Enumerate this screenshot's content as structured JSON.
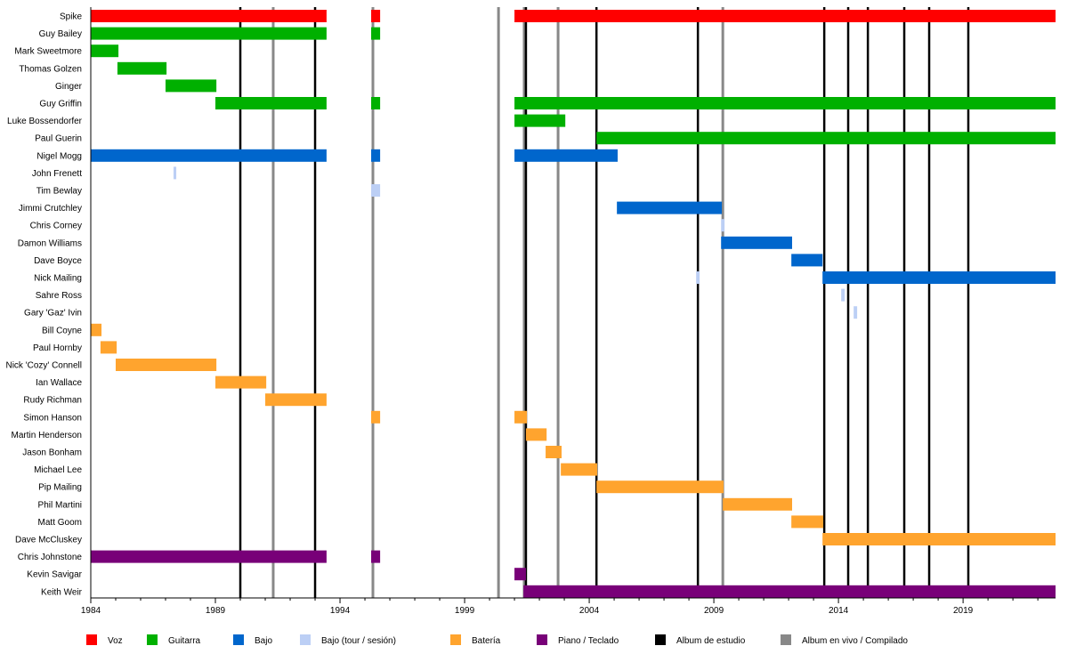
{
  "chart_data": {
    "type": "timeline",
    "title": "",
    "xlim": [
      1984,
      2022.71
    ],
    "x_ticks": [
      1984,
      1989,
      1994,
      1999,
      2004,
      2009,
      2014,
      2019
    ],
    "grid": false,
    "legend_placement": "bottom",
    "colors": {
      "voz": "#ff0000",
      "guitarra": "#00b000",
      "bajo": "#0066cc",
      "bajo_tour": "#bccff5",
      "bateria": "#ffa42e",
      "teclado": "#780078",
      "estudio": "#000000",
      "vivo": "#888888"
    },
    "legend": [
      {
        "key": "voz",
        "label": "Voz"
      },
      {
        "key": "guitarra",
        "label": "Guitarra"
      },
      {
        "key": "bajo",
        "label": "Bajo"
      },
      {
        "key": "bajo_tour",
        "label": "Bajo (tour / sesión)"
      },
      {
        "key": "bateria",
        "label": "Batería"
      },
      {
        "key": "teclado",
        "label": "Piano / Teclado"
      },
      {
        "key": "estudio",
        "label": "Album de estudio"
      },
      {
        "key": "vivo",
        "label": "Album en vivo / Compilado"
      }
    ],
    "albums": [
      {
        "year": 1990.0,
        "type": "estudio"
      },
      {
        "year": 1991.32,
        "type": "vivo"
      },
      {
        "year": 1993.0,
        "type": "estudio"
      },
      {
        "year": 1995.32,
        "type": "vivo"
      },
      {
        "year": 2000.36,
        "type": "vivo"
      },
      {
        "year": 2001.39,
        "type": "vivo"
      },
      {
        "year": 2001.46,
        "type": "estudio"
      },
      {
        "year": 2002.75,
        "type": "vivo"
      },
      {
        "year": 2004.29,
        "type": "estudio"
      },
      {
        "year": 2008.36,
        "type": "estudio"
      },
      {
        "year": 2009.36,
        "type": "vivo"
      },
      {
        "year": 2013.43,
        "type": "estudio"
      },
      {
        "year": 2014.39,
        "type": "estudio"
      },
      {
        "year": 2015.18,
        "type": "estudio"
      },
      {
        "year": 2016.64,
        "type": "estudio"
      },
      {
        "year": 2017.64,
        "type": "estudio"
      },
      {
        "year": 2019.21,
        "type": "estudio"
      }
    ],
    "members": [
      {
        "name": "Spike",
        "periods": [
          [
            "voz",
            1984,
            1993.46
          ],
          [
            "voz",
            1995.25,
            1995.61
          ],
          [
            "voz",
            2001.0,
            2022.71
          ]
        ]
      },
      {
        "name": "Guy Bailey",
        "periods": [
          [
            "guitarra",
            1984,
            1993.46
          ],
          [
            "guitarra",
            1995.25,
            1995.61
          ]
        ]
      },
      {
        "name": "Mark Sweetmore",
        "periods": [
          [
            "guitarra",
            1984,
            1985.11
          ]
        ]
      },
      {
        "name": "Thomas Golzen",
        "periods": [
          [
            "guitarra",
            1985.07,
            1987.04
          ]
        ]
      },
      {
        "name": "Ginger",
        "periods": [
          [
            "guitarra",
            1987.0,
            1989.04
          ]
        ]
      },
      {
        "name": "Guy Griffin",
        "periods": [
          [
            "guitarra",
            1989.0,
            1993.46
          ],
          [
            "guitarra",
            1995.25,
            1995.61
          ],
          [
            "guitarra",
            2001.0,
            2022.71
          ]
        ]
      },
      {
        "name": "Luke Bossendorfer",
        "periods": [
          [
            "guitarra",
            2001.0,
            2003.04
          ]
        ]
      },
      {
        "name": "Paul Guerin",
        "periods": [
          [
            "guitarra",
            2004.29,
            2022.71
          ]
        ]
      },
      {
        "name": "Nigel Mogg",
        "periods": [
          [
            "bajo",
            1984,
            1993.46
          ],
          [
            "bajo",
            1995.25,
            1995.61
          ],
          [
            "bajo",
            2001.0,
            2005.14
          ]
        ]
      },
      {
        "name": "John Frenett",
        "periods": [
          [
            "bajo_tour",
            1987.32,
            1987.43
          ]
        ]
      },
      {
        "name": "Tim Bewlay",
        "periods": [
          [
            "bajo_tour",
            1995.25,
            1995.61
          ]
        ]
      },
      {
        "name": "Jimmi Crutchley",
        "periods": [
          [
            "bajo",
            2005.11,
            2009.32
          ]
        ]
      },
      {
        "name": "Chris Corney",
        "periods": [
          [
            "bajo_tour",
            2009.29,
            2009.43
          ]
        ]
      },
      {
        "name": "Damon Williams",
        "periods": [
          [
            "bajo",
            2009.29,
            2012.14
          ]
        ]
      },
      {
        "name": "Dave Boyce",
        "periods": [
          [
            "bajo",
            2012.11,
            2013.36
          ]
        ]
      },
      {
        "name": "Nick Mailing",
        "periods": [
          [
            "bajo_tour",
            2008.29,
            2008.43
          ],
          [
            "bajo",
            2013.36,
            2022.71
          ]
        ]
      },
      {
        "name": "Sahre Ross",
        "periods": [
          [
            "bajo_tour",
            2014.11,
            2014.25
          ]
        ]
      },
      {
        "name": "Gary 'Gaz' Ivin",
        "periods": [
          [
            "bajo_tour",
            2014.61,
            2014.75
          ]
        ]
      },
      {
        "name": "Bill Coyne",
        "periods": [
          [
            "bateria",
            1984,
            1984.43
          ]
        ]
      },
      {
        "name": "Paul Hornby",
        "periods": [
          [
            "bateria",
            1984.39,
            1985.04
          ]
        ]
      },
      {
        "name": "Nick 'Cozy' Connell",
        "periods": [
          [
            "bateria",
            1985.0,
            1989.04
          ]
        ]
      },
      {
        "name": "Ian Wallace",
        "periods": [
          [
            "bateria",
            1989.0,
            1991.04
          ]
        ]
      },
      {
        "name": "Rudy Richman",
        "periods": [
          [
            "bateria",
            1991.0,
            1993.46
          ]
        ]
      },
      {
        "name": "Simon Hanson",
        "periods": [
          [
            "bateria",
            1995.25,
            1995.61
          ],
          [
            "bateria",
            2001.0,
            2001.5
          ]
        ]
      },
      {
        "name": "Martin Henderson",
        "periods": [
          [
            "bateria",
            2001.46,
            2002.29
          ]
        ]
      },
      {
        "name": "Jason Bonham",
        "periods": [
          [
            "bateria",
            2002.25,
            2002.89
          ]
        ]
      },
      {
        "name": "Michael Lee",
        "periods": [
          [
            "bateria",
            2002.86,
            2004.32
          ]
        ]
      },
      {
        "name": "Pip Mailing",
        "periods": [
          [
            "bateria",
            2004.29,
            2009.39
          ]
        ]
      },
      {
        "name": "Phil Martini",
        "periods": [
          [
            "bateria",
            2009.36,
            2012.14
          ]
        ]
      },
      {
        "name": "Matt Goom",
        "periods": [
          [
            "bateria",
            2012.11,
            2013.39
          ]
        ]
      },
      {
        "name": "Dave McCluskey",
        "periods": [
          [
            "bateria",
            2013.36,
            2022.71
          ]
        ]
      },
      {
        "name": "Chris Johnstone",
        "periods": [
          [
            "teclado",
            1984,
            1993.46
          ],
          [
            "teclado",
            1995.25,
            1995.61
          ]
        ]
      },
      {
        "name": "Kevin Savigar",
        "periods": [
          [
            "teclado",
            2001.0,
            2001.46
          ]
        ]
      },
      {
        "name": "Keith Weir",
        "periods": [
          [
            "teclado",
            2001.36,
            2022.71
          ]
        ]
      }
    ]
  }
}
